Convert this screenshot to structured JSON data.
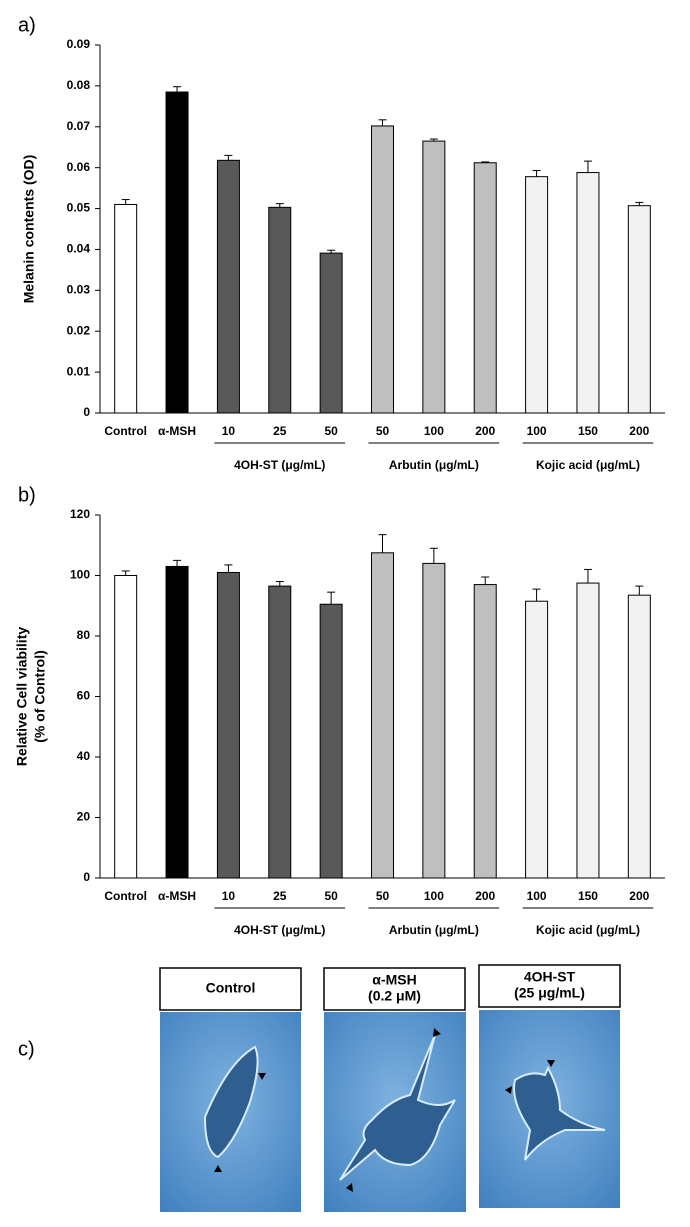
{
  "panel_labels": [
    "a)",
    "b)",
    "c)"
  ],
  "chart_data": [
    {
      "type": "bar",
      "ylabel": [
        "Melanin contents (OD)"
      ],
      "categories": [
        "Control",
        "α-MSH",
        "10",
        "25",
        "50",
        "50",
        "100",
        "200",
        "100",
        "150",
        "200"
      ],
      "values": [
        0.051,
        0.0785,
        0.0618,
        0.0503,
        0.0391,
        0.0702,
        0.0665,
        0.0612,
        0.0578,
        0.0588,
        0.0507
      ],
      "errors": [
        0.0012,
        0.0013,
        0.0012,
        0.0009,
        0.0007,
        0.0015,
        0.0005,
        0.0002,
        0.0015,
        0.0028,
        0.0008
      ],
      "colors": [
        "#ffffff",
        "#000000",
        "#595959",
        "#595959",
        "#595959",
        "#bfbfbf",
        "#bfbfbf",
        "#bfbfbf",
        "#f2f2f2",
        "#f2f2f2",
        "#f2f2f2"
      ],
      "groups": [
        "4OH-ST (μg/mL)",
        "Arbutin (μg/mL)",
        "Kojic acid (μg/mL)"
      ],
      "ylim": [
        0,
        0.09
      ],
      "yticks": [
        0,
        0.01,
        0.02,
        0.03,
        0.04,
        0.05,
        0.06,
        0.07,
        0.08,
        0.09
      ],
      "grid": false
    },
    {
      "type": "bar",
      "ylabel": [
        "Relative Cell viability",
        "(% of Control)"
      ],
      "categories": [
        "Control",
        "α-MSH",
        "10",
        "25",
        "50",
        "50",
        "100",
        "200",
        "100",
        "150",
        "200"
      ],
      "values": [
        100,
        103,
        101,
        96.5,
        90.5,
        107.5,
        104,
        97,
        91.5,
        97.5,
        93.5
      ],
      "errors": [
        1.5,
        2,
        2.5,
        1.5,
        4,
        6,
        5,
        2.5,
        4,
        4.5,
        3
      ],
      "colors": [
        "#ffffff",
        "#000000",
        "#595959",
        "#595959",
        "#595959",
        "#bfbfbf",
        "#bfbfbf",
        "#bfbfbf",
        "#f2f2f2",
        "#f2f2f2",
        "#f2f2f2"
      ],
      "groups": [
        "4OH-ST (μg/mL)",
        "Arbutin (μg/mL)",
        "Kojic acid (μg/mL)"
      ],
      "ylim": [
        0,
        120
      ],
      "yticks": [
        0,
        20,
        40,
        60,
        80,
        100,
        120
      ],
      "grid": false
    }
  ],
  "micrographs": [
    {
      "caption": [
        "Control"
      ]
    },
    {
      "caption": [
        "α-MSH",
        "(0.2 μM)"
      ]
    },
    {
      "caption": [
        "4OH-ST",
        "(25 μg/mL)"
      ]
    }
  ]
}
